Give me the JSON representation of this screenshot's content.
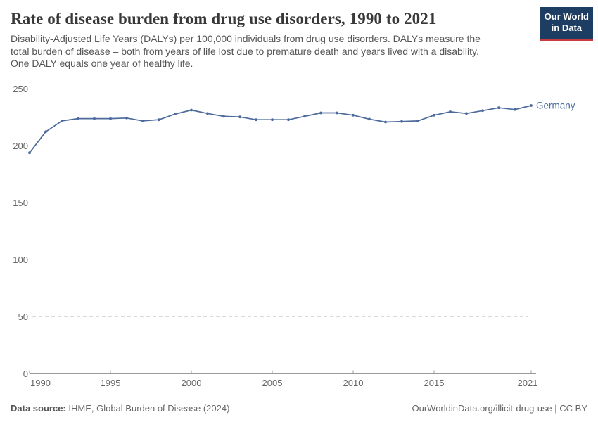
{
  "header": {
    "title": "Rate of disease burden from drug use disorders, 1990 to 2021",
    "subtitle": "Disability-Adjusted Life Years (DALYs) per 100,000 individuals from drug use disorders. DALYs measure the\ntotal burden of disease – both from years of life lost due to premature death and years lived with a disability.\nOne DALY equals one year of healthy life.",
    "logo_text": "Our World\nin Data",
    "logo_bg_color": "#1d3d63",
    "logo_stripe_color": "#c73a3d"
  },
  "footer": {
    "datasource_label": "Data source:",
    "datasource_value": "IHME, Global Burden of Disease (2024)",
    "link": "OurWorldinData.org/illicit-drug-use | CC BY"
  },
  "chart_data": {
    "type": "line",
    "title": "Rate of disease burden from drug use disorders, 1990 to 2021",
    "ylabel": "DALYs per 100,000 individuals",
    "x": [
      1990,
      1991,
      1992,
      1993,
      1994,
      1995,
      1996,
      1997,
      1998,
      1999,
      2000,
      2001,
      2002,
      2003,
      2004,
      2005,
      2006,
      2007,
      2008,
      2009,
      2010,
      2011,
      2012,
      2013,
      2014,
      2015,
      2016,
      2017,
      2018,
      2019,
      2020,
      2021
    ],
    "series": [
      {
        "name": "Germany",
        "color": "#4c6a9c",
        "values": [
          194,
          212.5,
          222,
          224,
          224,
          224,
          224.5,
          222,
          223,
          228,
          231.5,
          228.5,
          226,
          225.5,
          223,
          223,
          223,
          226,
          229,
          229,
          227,
          223.5,
          221,
          221.5,
          222,
          227,
          230,
          228.5,
          231,
          233.5,
          232,
          235.5
        ]
      }
    ],
    "ylim": [
      0,
      250
    ],
    "yticks": [
      0,
      50,
      100,
      150,
      200,
      250
    ],
    "xticks": [
      1990,
      1995,
      2000,
      2005,
      2010,
      2015,
      2021
    ],
    "grid": "horizontal-dashed",
    "grid_color": "#d9d9d9",
    "axis_color": "#9a9a9a",
    "tick_label_color": "#666666",
    "legend_position": "end-of-line-label"
  }
}
